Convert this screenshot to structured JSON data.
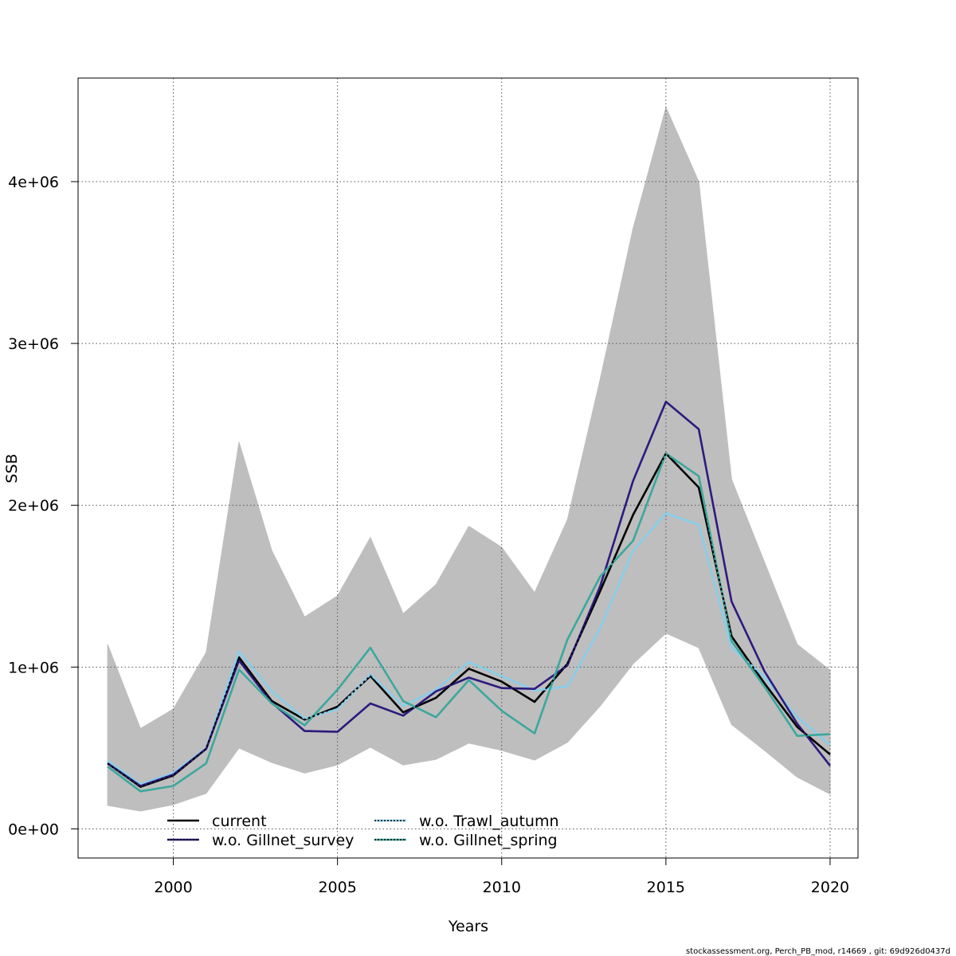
{
  "chart_data": {
    "type": "line",
    "xlabel": "Years",
    "ylabel": "SSB",
    "xlim": [
      1997.1,
      2020.85
    ],
    "ylim": [
      -180000,
      4640000
    ],
    "x_ticks": [
      2000,
      2005,
      2010,
      2015,
      2020
    ],
    "x_tick_labels": [
      "2000",
      "2005",
      "2010",
      "2015",
      "2020"
    ],
    "y_ticks": [
      0,
      1000000,
      2000000,
      3000000,
      4000000
    ],
    "y_tick_labels": [
      "0e+00",
      "1e+06",
      "2e+06",
      "3e+06",
      "4e+06"
    ],
    "grid": true,
    "legend_position": "bottom-left",
    "x": [
      1998,
      1999,
      2000,
      2001,
      2002,
      2003,
      2004,
      2005,
      2006,
      2007,
      2008,
      2009,
      2010,
      2011,
      2012,
      2013,
      2014,
      2015,
      2016,
      2017,
      2018,
      2019,
      2020
    ],
    "confidence_band": {
      "upper": [
        1140000,
        620000,
        740000,
        1090000,
        2390000,
        1720000,
        1310000,
        1440000,
        1800000,
        1330000,
        1510000,
        1870000,
        1740000,
        1460000,
        1910000,
        2780000,
        3710000,
        4460000,
        4000000,
        2160000,
        1650000,
        1140000,
        980000
      ],
      "lower": [
        145000,
        110000,
        150000,
        220000,
        500000,
        410000,
        345000,
        395000,
        505000,
        395000,
        430000,
        530000,
        485000,
        425000,
        535000,
        760000,
        1020000,
        1210000,
        1120000,
        645000,
        485000,
        320000,
        215000
      ],
      "color": "#bebebe"
    },
    "series": [
      {
        "name": "current",
        "color": "#000000",
        "dashed": false,
        "values": [
          405000,
          260000,
          330000,
          495000,
          1060000,
          790000,
          675000,
          755000,
          945000,
          720000,
          810000,
          990000,
          910000,
          785000,
          1020000,
          1470000,
          1940000,
          2320000,
          2110000,
          1190000,
          900000,
          630000,
          460000
        ]
      },
      {
        "name": "w.o. Trawl_autumn",
        "color": "#87ceeb",
        "dashed": false,
        "values": [
          420000,
          275000,
          345000,
          500000,
          1095000,
          850000,
          680000,
          740000,
          955000,
          760000,
          860000,
          1030000,
          945000,
          855000,
          880000,
          1240000,
          1720000,
          1950000,
          1880000,
          1120000,
          940000,
          690000,
          520000
        ]
      },
      {
        "name": "w.o. Gillnet_survey",
        "color": "#2e1a7e",
        "dashed": false,
        "values": [
          405000,
          265000,
          335000,
          495000,
          1040000,
          780000,
          605000,
          600000,
          775000,
          700000,
          850000,
          935000,
          870000,
          865000,
          1010000,
          1500000,
          2150000,
          2640000,
          2470000,
          1405000,
          975000,
          650000,
          390000
        ]
      },
      {
        "name": "w.o. Gillnet_spring",
        "color": "#3ba89c",
        "dashed": false,
        "values": [
          385000,
          232000,
          265000,
          405000,
          985000,
          775000,
          640000,
          860000,
          1120000,
          790000,
          690000,
          920000,
          730000,
          590000,
          1170000,
          1560000,
          1780000,
          2320000,
          2180000,
          1160000,
          880000,
          575000,
          585000
        ]
      },
      {
        "name": "",
        "color": "#000000",
        "dashed": true,
        "values": [
          405000,
          260000,
          330000,
          495000,
          1060000,
          790000,
          675000,
          755000,
          945000,
          720000,
          810000,
          990000,
          910000,
          785000,
          1020000,
          1470000,
          1940000,
          2320000,
          2110000,
          1190000,
          900000,
          630000,
          460000
        ]
      }
    ],
    "legend": [
      {
        "label": "current",
        "color": "#000000",
        "dash_color": ""
      },
      {
        "label": "w.o. Gillnet_survey",
        "color": "#2e1a7e",
        "dash_color": "#000000"
      },
      {
        "label": "w.o. Trawl_autumn",
        "color": "#87ceeb",
        "dash_color": "#000000"
      },
      {
        "label": "w.o. Gillnet_spring",
        "color": "#3ba89c",
        "dash_color": "#000000"
      }
    ]
  },
  "footer": "stockassessment.org, Perch_PB_mod, r14669 , git: 69d926d0437d"
}
